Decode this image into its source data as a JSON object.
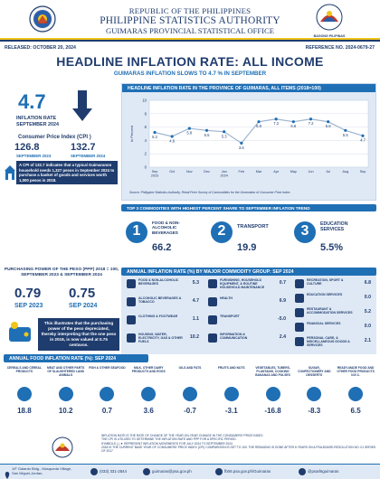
{
  "header": {
    "line1": "REPUBLIC OF THE PHILIPPINES",
    "line2": "PHILIPPINE STATISTICS AUTHORITY",
    "line3": "GUIMARAS PROVINCIAL STATISTICAL OFFICE",
    "released": "RELEASED: OCTOBER 20, 2024",
    "reference": "REFERENCE NO. 2024-0679-27",
    "title": "HEADLINE INFLATION RATE: ALL INCOME",
    "subtitle": "GUIMARAS INFLATION SLOWS TO 4.7 % IN SEPTEMBER",
    "right_logo_text": "BAGONG PILIPINAS"
  },
  "summary": {
    "rate": "4.7",
    "rate_label_1": "INFLATION RATE",
    "rate_label_2": "SEPTEMBER 2024",
    "cpi_title": "Consumer Price Index (CPI )",
    "cpi_a_value": "126.8",
    "cpi_a_label": "SEPTEMBER 2023",
    "cpi_b_value": "132.7",
    "cpi_b_label": "SEPTEMBER 2024",
    "cpi_note": "A CPI of 132.7 indicates that a typical Guimaranon household needs 1,327 pesos in September 2024 to purchase a basket of goods and services worth 1,000 pesos in 2018."
  },
  "trend": {
    "title": "HEADLINE INFLATION RATE IN THE PROVINCE OF GUIMARAS, ALL ITEMS (2018=100)",
    "source": "Source: Philippine Statistics Authority, Retail Price Survey of Commodities for the Generation of Consumer Price Index"
  },
  "chart_data": {
    "type": "line",
    "x": [
      "Sep 2023",
      "Oct",
      "Nov",
      "Dec",
      "Jan 2024",
      "Feb",
      "Mar",
      "Apr",
      "May",
      "Jun",
      "Jul",
      "Aug",
      "Sep"
    ],
    "values": [
      5.2,
      4.6,
      5.8,
      5.5,
      5.3,
      3.6,
      6.8,
      7.2,
      6.8,
      7.2,
      6.8,
      5.5,
      4.7
    ],
    "ylabel": "in Percent",
    "ylim": [
      0,
      10
    ],
    "yticks": [
      "0",
      "2",
      "4",
      "6",
      "8",
      "10"
    ],
    "grid": true
  },
  "top3": {
    "title": "TOP 3 COMMODITIES WITH HIGHEST PERCENT SHARE TO SEPTEMBER INFLATION TREND",
    "items": [
      {
        "rank": "1",
        "label": "FOOD & NON-ALCOHOLIC BEVERAGES",
        "value": "66.2"
      },
      {
        "rank": "2",
        "label": "TRANSPORT",
        "value": "19.9"
      },
      {
        "rank": "3",
        "label": "EDUCATION SERVICES",
        "value": "5.5%"
      }
    ]
  },
  "purchasing": {
    "title": "PURCHASING POWER OF THE PESO (PPP) 2018 = 100, SEPTEMBER 2023 & SEPTEMBER 2024",
    "a_value": "0.79",
    "a_label": "SEP 2023",
    "b_value": "0.75",
    "b_label": "SEP 2024",
    "note": "This illustrates that the purchasing power of the peso depreciated, thereby interpreting that the one peso in 2018, is now valued at 0.75 centavos."
  },
  "commodity": {
    "title": "ANNUAL INFLATION RATE (%) BY MAJOR COMMODITY GROUP: SEP 2024",
    "col1": [
      {
        "label": "FOOD & NON-ALCOHOLIC BEVERAGES",
        "value": "5.3"
      },
      {
        "label": "ALCOHOLIC BEVERAGES & TOBACCO",
        "value": "4.7"
      },
      {
        "label": "CLOTHING & FOOTWEAR",
        "value": "1.1"
      },
      {
        "label": "HOUSING, WATER, ELECTRICITY, GAS & OTHER FUELS",
        "value": "10.2"
      }
    ],
    "col2": [
      {
        "label": "FURNISHING, HOUSEHOLD EQUIPMENT, & ROUTINE HOUSEHOLD MAINTENANCE",
        "value": "0.7"
      },
      {
        "label": "HEALTH",
        "value": "6.9"
      },
      {
        "label": "TRANSPORT",
        "value": "-5.0"
      },
      {
        "label": "INFORMATION & COMMUNICATION",
        "value": "2.4"
      }
    ],
    "col3": [
      {
        "label": "RECREATION, SPORT & CULTURE",
        "value": "6.8"
      },
      {
        "label": "EDUCATION SERVICES",
        "value": "0.0"
      },
      {
        "label": "RESTAURANT & ACCOMMODATION SERVICES",
        "value": "5.2"
      },
      {
        "label": "FINANCIAL SERVICES",
        "value": "0.0"
      },
      {
        "label": "PERSONAL CARE, & MISCELLANEOUS GOODS & SERVICES",
        "value": "2.1"
      }
    ]
  },
  "food": {
    "title": "ANNUAL FOOD INFLATION RATE (%): SEP 2024",
    "items": [
      {
        "label": "CEREALS AND CEREAL PRODUCTS",
        "value": "18.8"
      },
      {
        "label": "MEAT AND OTHER PARTS OF SLAUGHTERED LAND ANIMALS",
        "value": "10.2"
      },
      {
        "label": "FISH & OTHER SEAFOOD",
        "value": "0.7"
      },
      {
        "label": "MILK, OTHER DAIRY PRODUCTS AND EGGS",
        "value": "3.6"
      },
      {
        "label": "OILS AND FATS",
        "value": "-0.7"
      },
      {
        "label": "FRUITS AND NUTS",
        "value": "-3.1"
      },
      {
        "label": "VEGETABLES, TUBERS, PLANTAINS, COOKING BANANAS AND PULSES",
        "value": "-16.8"
      },
      {
        "label": "SUGAR, CONFECTIONERY AND DESSERTS",
        "value": "-8.3"
      },
      {
        "label": "READY-MADE FOOD AND OTHER FOOD PRODUCTS N.E.C.",
        "value": "6.5"
      }
    ]
  },
  "notes": [
    "INFLATION RATE IS THE RATE OF CHANGE OF THE YEAR-ON-YEAR CHANGE IN THE CONSUMERS' PRICE INDEX.",
    "THE CPI IS UTILIZED TO DETERMINE THE INFLATION RATE AND PPP FOR A SPECIFIC PERIOD.",
    "SYMBOLS ( ) ▼ REPRESENT INFLATION MOVEMENTS FOR JULY 2024 TO SEPTEMBER 2024",
    "2018 IS THE CURRENT BASE YEAR OF CONSUMERS' PRICE INDEX (CPI) COMPARISON IS SET TO 100. THE REBASING IS DONE AFTER 6 YEARS ON A PSA BOARD RESOLUTION NO. 01 SERIES OF 2017"
  ],
  "footer": {
    "address": "1/F Galanto Bldg., Mosqueda Village, San Miguel,Jordan,",
    "phone": "(033) 331-2844",
    "email": "guimaras@psa.gov.ph",
    "facebook": "fb06.psa.gov.ph/Guimaras",
    "twitter": "@psarl6guimaras"
  }
}
